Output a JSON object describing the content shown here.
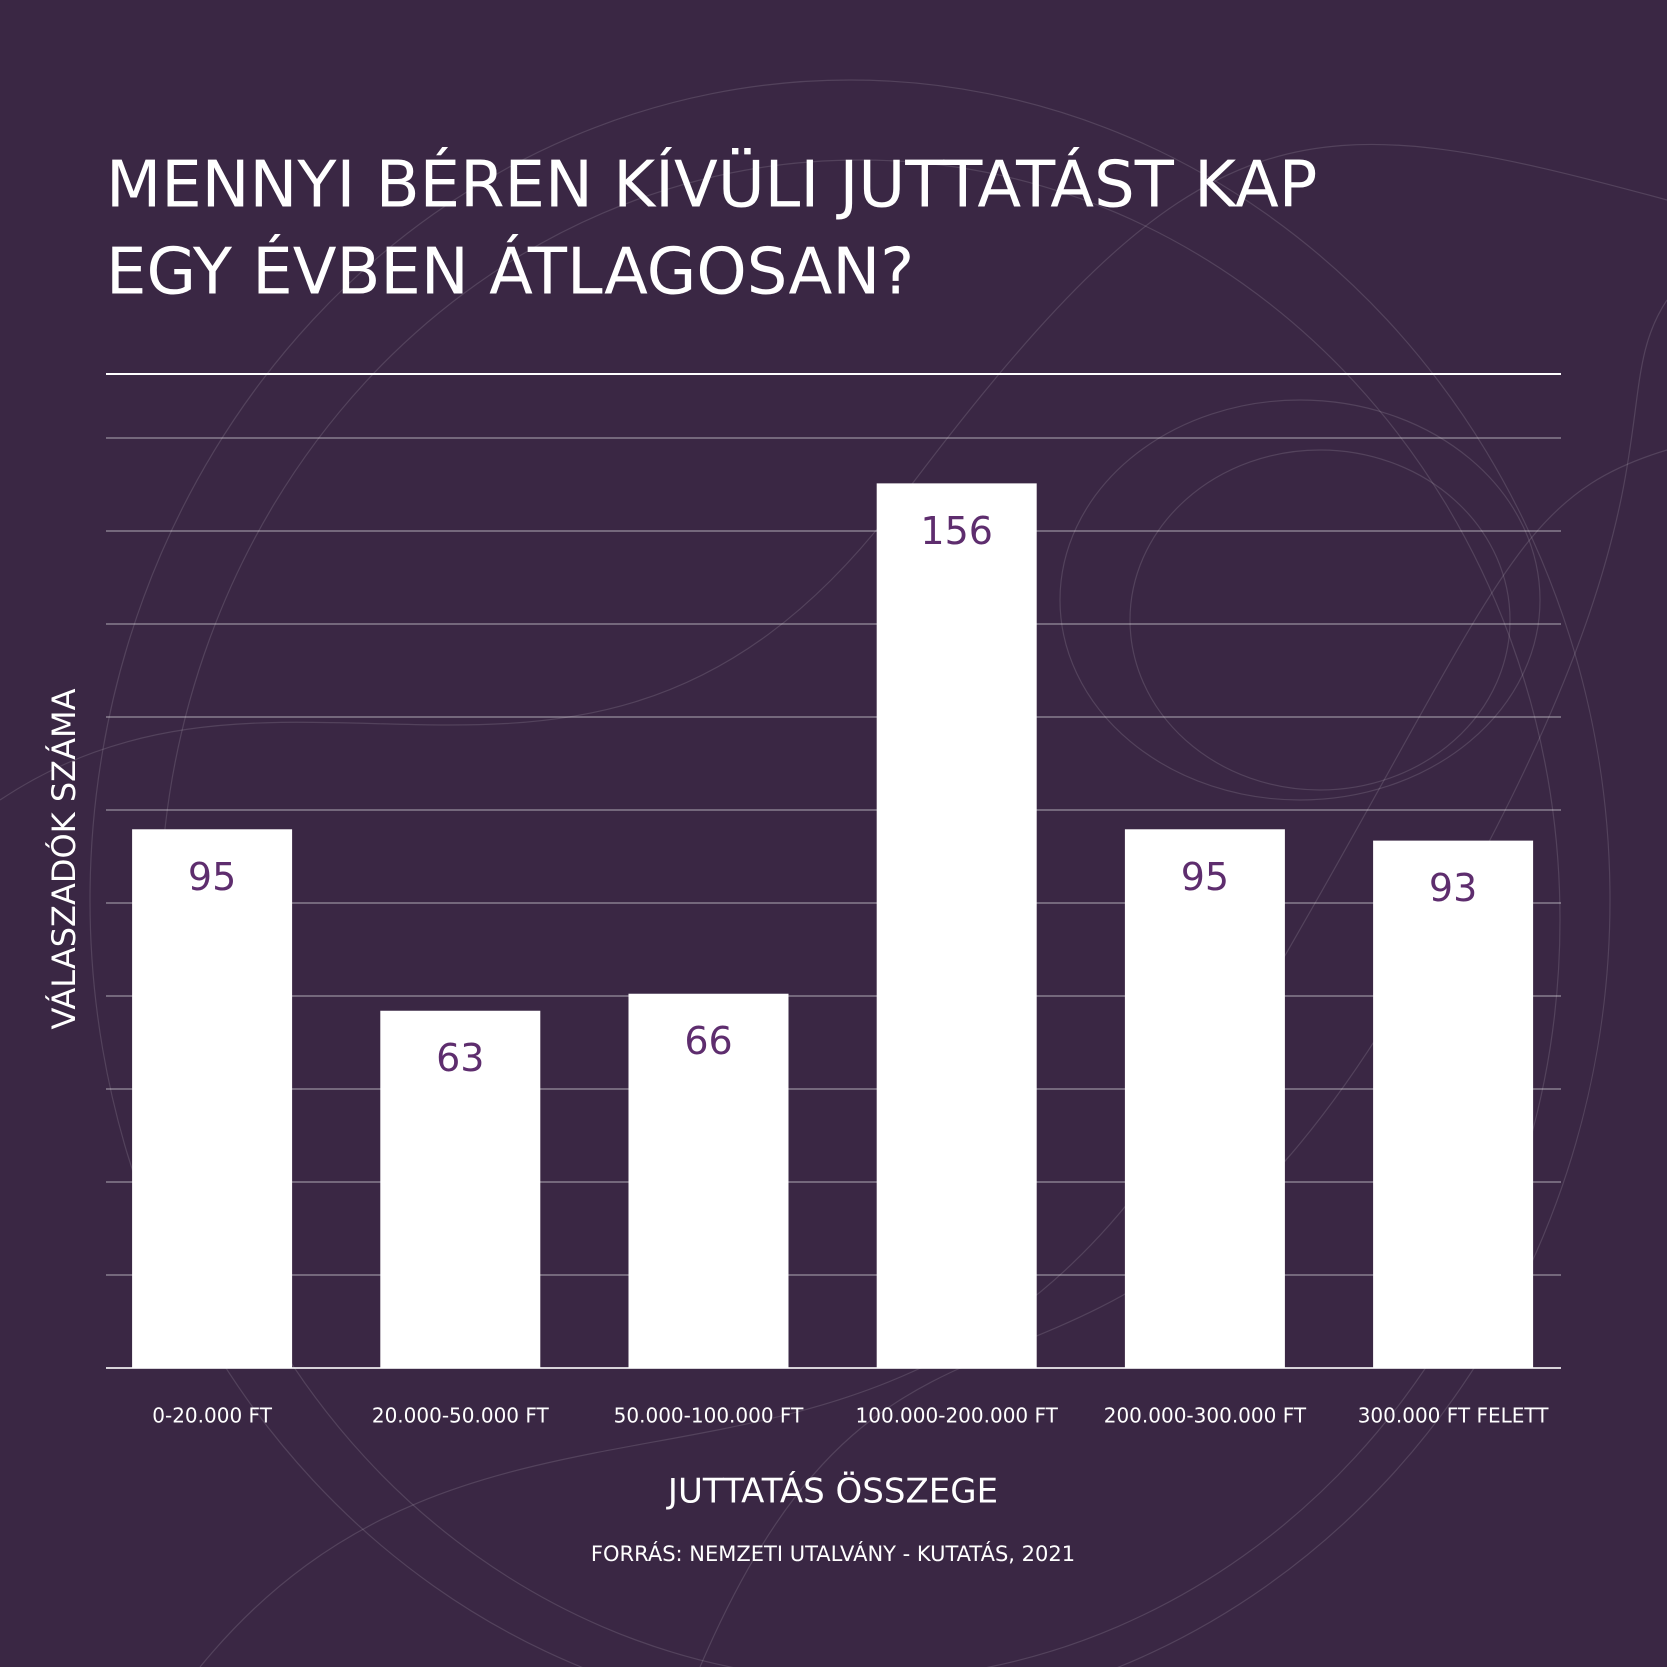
{
  "chart_data": {
    "type": "bar",
    "title_lines": [
      "MENNYI BÉREN KÍVÜLI JUTTATÁST KAP",
      "EGY ÉVBEN ÁTLAGOSAN?"
    ],
    "y_label": "VÁLASZADÓK SZÁMA",
    "x_label": "JUTTATÁS ÖSSZEGE",
    "source": "FORRÁS: NEMZETI UTALVÁNY - KUTATÁS, 2021",
    "categories": [
      "0-20.000 FT",
      "20.000-50.000 FT",
      "50.000-100.000 FT",
      "100.000-200.000 FT",
      "200.000-300.000 FT",
      "300.000 FT FELETT"
    ],
    "values": [
      95,
      63,
      66,
      156,
      95,
      93
    ],
    "color": "#ffffff",
    "label_color": "#5e2d6e",
    "ylim": [
      0,
      164
    ],
    "grid": true
  }
}
